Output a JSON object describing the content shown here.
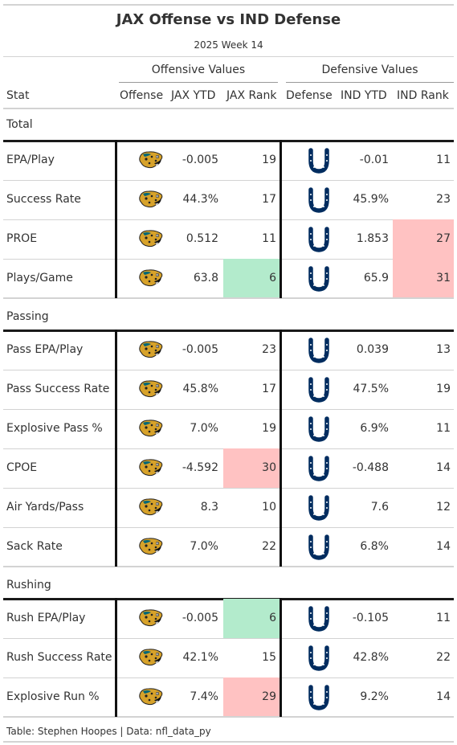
{
  "title": "JAX Offense vs IND Defense",
  "subtitle": "2025 Week 14",
  "spanners": {
    "offense": "Offensive Values",
    "defense": "Defensive Values"
  },
  "columns": {
    "stat": "Stat",
    "offense": "Offense",
    "jax_ytd": "JAX YTD",
    "jax_rank": "JAX Rank",
    "defense": "Defense",
    "ind_ytd": "IND YTD",
    "ind_rank": "IND Rank"
  },
  "colors": {
    "good": "#b3ebcc",
    "bad": "#ffc2c2",
    "colts_blue": "#002c5f",
    "jags_teal": "#006778",
    "jags_gold": "#d7a22a"
  },
  "groups": [
    {
      "name": "Total",
      "rows": [
        {
          "stat": "EPA/Play",
          "jax_ytd": "-0.005",
          "jax_rank": "19",
          "ind_ytd": "-0.01",
          "ind_rank": "11",
          "jax_hl": "",
          "ind_hl": ""
        },
        {
          "stat": "Success Rate",
          "jax_ytd": "44.3%",
          "jax_rank": "17",
          "ind_ytd": "45.9%",
          "ind_rank": "23",
          "jax_hl": "",
          "ind_hl": ""
        },
        {
          "stat": "PROE",
          "jax_ytd": "0.512",
          "jax_rank": "11",
          "ind_ytd": "1.853",
          "ind_rank": "27",
          "jax_hl": "",
          "ind_hl": "bad"
        },
        {
          "stat": "Plays/Game",
          "jax_ytd": "63.8",
          "jax_rank": "6",
          "ind_ytd": "65.9",
          "ind_rank": "31",
          "jax_hl": "good",
          "ind_hl": "bad"
        }
      ]
    },
    {
      "name": "Passing",
      "rows": [
        {
          "stat": "Pass EPA/Play",
          "jax_ytd": "-0.005",
          "jax_rank": "23",
          "ind_ytd": "0.039",
          "ind_rank": "13",
          "jax_hl": "",
          "ind_hl": ""
        },
        {
          "stat": "Pass Success Rate",
          "jax_ytd": "45.8%",
          "jax_rank": "17",
          "ind_ytd": "47.5%",
          "ind_rank": "19",
          "jax_hl": "",
          "ind_hl": ""
        },
        {
          "stat": "Explosive Pass %",
          "jax_ytd": "7.0%",
          "jax_rank": "19",
          "ind_ytd": "6.9%",
          "ind_rank": "11",
          "jax_hl": "",
          "ind_hl": ""
        },
        {
          "stat": "CPOE",
          "jax_ytd": "-4.592",
          "jax_rank": "30",
          "ind_ytd": "-0.488",
          "ind_rank": "14",
          "jax_hl": "bad",
          "ind_hl": ""
        },
        {
          "stat": "Air Yards/Pass",
          "jax_ytd": "8.3",
          "jax_rank": "10",
          "ind_ytd": "7.6",
          "ind_rank": "12",
          "jax_hl": "",
          "ind_hl": ""
        },
        {
          "stat": "Sack Rate",
          "jax_ytd": "7.0%",
          "jax_rank": "22",
          "ind_ytd": "6.8%",
          "ind_rank": "14",
          "jax_hl": "",
          "ind_hl": ""
        }
      ]
    },
    {
      "name": "Rushing",
      "rows": [
        {
          "stat": "Rush EPA/Play",
          "jax_ytd": "-0.005",
          "jax_rank": "6",
          "ind_ytd": "-0.105",
          "ind_rank": "11",
          "jax_hl": "good",
          "ind_hl": ""
        },
        {
          "stat": "Rush Success Rate",
          "jax_ytd": "42.1%",
          "jax_rank": "15",
          "ind_ytd": "42.8%",
          "ind_rank": "22",
          "jax_hl": "",
          "ind_hl": ""
        },
        {
          "stat": "Explosive Run %",
          "jax_ytd": "7.4%",
          "jax_rank": "29",
          "ind_ytd": "9.2%",
          "ind_rank": "14",
          "jax_hl": "bad",
          "ind_hl": ""
        }
      ]
    }
  ],
  "footer": "Table: Stephen Hoopes | Data: nfl_data_py"
}
